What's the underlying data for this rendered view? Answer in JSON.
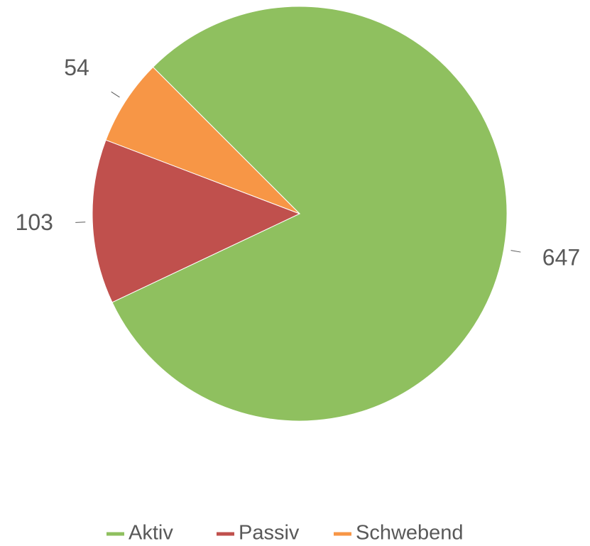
{
  "chart_data": {
    "type": "pie",
    "categories": [
      "Aktiv",
      "Passiv",
      "Schwebend"
    ],
    "values": [
      647,
      103,
      54
    ],
    "colors": [
      "#8fc05f",
      "#c0504d",
      "#f79646"
    ],
    "start_angle": -45,
    "legend": "bottom"
  }
}
